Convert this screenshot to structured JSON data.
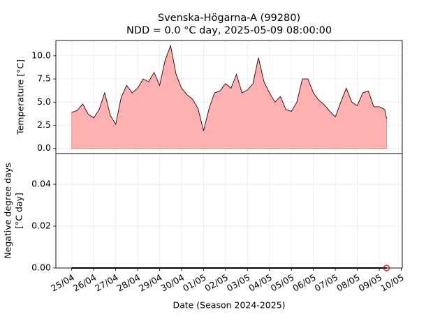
{
  "chart_data": [
    {
      "type": "area",
      "title": "Svenska-Högarna-A (99280)",
      "subtitle": "NDD = 0.0 °C day, 2025-05-09 08:00:00",
      "ylabel": "Temperature [°C]",
      "x": [
        "2025-04-25 00:00",
        "2025-04-25 06:00",
        "2025-04-25 12:00",
        "2025-04-25 18:00",
        "2025-04-26 00:00",
        "2025-04-26 06:00",
        "2025-04-26 12:00",
        "2025-04-26 18:00",
        "2025-04-27 00:00",
        "2025-04-27 06:00",
        "2025-04-27 12:00",
        "2025-04-27 18:00",
        "2025-04-28 00:00",
        "2025-04-28 06:00",
        "2025-04-28 12:00",
        "2025-04-28 18:00",
        "2025-04-29 00:00",
        "2025-04-29 06:00",
        "2025-04-29 12:00",
        "2025-04-29 18:00",
        "2025-04-30 00:00",
        "2025-04-30 06:00",
        "2025-04-30 12:00",
        "2025-04-30 18:00",
        "2025-05-01 00:00",
        "2025-05-01 06:00",
        "2025-05-01 12:00",
        "2025-05-01 18:00",
        "2025-05-02 00:00",
        "2025-05-02 06:00",
        "2025-05-02 12:00",
        "2025-05-02 18:00",
        "2025-05-03 00:00",
        "2025-05-03 06:00",
        "2025-05-03 12:00",
        "2025-05-03 18:00",
        "2025-05-04 00:00",
        "2025-05-04 06:00",
        "2025-05-04 12:00",
        "2025-05-04 18:00",
        "2025-05-05 00:00",
        "2025-05-05 06:00",
        "2025-05-05 12:00",
        "2025-05-05 18:00",
        "2025-05-06 00:00",
        "2025-05-06 06:00",
        "2025-05-06 12:00",
        "2025-05-06 18:00",
        "2025-05-07 00:00",
        "2025-05-07 06:00",
        "2025-05-07 12:00",
        "2025-05-07 18:00",
        "2025-05-08 00:00",
        "2025-05-08 06:00",
        "2025-05-08 12:00",
        "2025-05-08 18:00",
        "2025-05-09 00:00",
        "2025-05-09 06:00",
        "2025-05-09 08:00"
      ],
      "values": [
        3.9,
        4.1,
        4.8,
        3.7,
        3.3,
        4.2,
        6.0,
        3.6,
        2.6,
        5.5,
        6.8,
        6.0,
        6.5,
        7.5,
        7.2,
        8.2,
        6.8,
        9.5,
        11.1,
        8.0,
        6.5,
        5.8,
        5.3,
        4.3,
        1.9,
        4.3,
        6.0,
        6.2,
        7.0,
        6.5,
        8.0,
        6.0,
        6.3,
        7.0,
        9.8,
        7.2,
        6.0,
        5.0,
        5.6,
        4.2,
        4.0,
        5.0,
        7.5,
        7.5,
        6.0,
        5.2,
        4.7,
        4.0,
        3.4,
        5.0,
        6.5,
        5.0,
        4.6,
        6.0,
        6.2,
        4.5,
        4.5,
        4.2,
        3.2
      ],
      "color": "#ffb0b0",
      "line_color": "#3a0808",
      "ylim": [
        -0.55,
        11.65
      ],
      "yticks": [
        {
          "value": 0,
          "label": "0.0"
        },
        2.5,
        {
          "value": 5,
          "label": "5.0"
        },
        7.5,
        {
          "value": 10,
          "label": "10.0"
        }
      ],
      "grid": true
    },
    {
      "type": "line",
      "ylabel": [
        "Negative degree days",
        "[°C day]"
      ],
      "xlabel": "Date (Season 2024-2025)",
      "x": [
        "2025-04-25 00:00",
        "2025-05-09 08:00"
      ],
      "values": [
        0,
        0
      ],
      "color": "#000000",
      "marker": {
        "x": "2025-05-09 08:00",
        "value": 0,
        "color": "#ff0000"
      },
      "xlim": [
        "2025-04-24 06:40",
        "2025-05-10 01:10"
      ],
      "xticks": [
        {
          "value": "2025-04-25 00:00",
          "label": "25/04"
        },
        {
          "value": "2025-04-26 00:00",
          "label": "26/04"
        },
        {
          "value": "2025-04-27 00:00",
          "label": "27/04"
        },
        {
          "value": "2025-04-28 00:00",
          "label": "28/04"
        },
        {
          "value": "2025-04-29 00:00",
          "label": "29/04"
        },
        {
          "value": "2025-04-30 00:00",
          "label": "30/04"
        },
        {
          "value": "2025-05-01 00:00",
          "label": "01/05"
        },
        {
          "value": "2025-05-02 00:00",
          "label": "02/05"
        },
        {
          "value": "2025-05-03 00:00",
          "label": "03/05"
        },
        {
          "value": "2025-05-04 00:00",
          "label": "04/05"
        },
        {
          "value": "2025-05-05 00:00",
          "label": "05/05"
        },
        {
          "value": "2025-05-06 00:00",
          "label": "06/05"
        },
        {
          "value": "2025-05-07 00:00",
          "label": "07/05"
        },
        {
          "value": "2025-05-08 00:00",
          "label": "08/05"
        },
        {
          "value": "2025-05-09 00:00",
          "label": "09/05"
        },
        {
          "value": "2025-05-10 00:00",
          "label": "10/05"
        }
      ],
      "ylim": [
        0,
        0.0547
      ],
      "yticks": [
        {
          "value": 0,
          "label": "0.00"
        },
        {
          "value": 0.02,
          "label": "0.02"
        },
        {
          "value": 0.04,
          "label": "0.04"
        }
      ],
      "grid": true
    }
  ]
}
